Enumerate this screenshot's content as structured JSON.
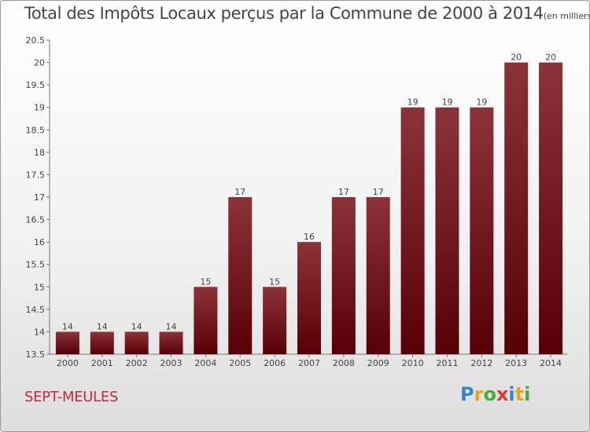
{
  "header": {
    "title": "Total des Impôts Locaux perçus par la Commune de 2000 à 2014",
    "unit": "(en milliers d'€)"
  },
  "footer": {
    "commune": "SEPT-MEULES",
    "logo_letters": [
      {
        "ch": "P",
        "color": "#3b7fd1"
      },
      {
        "ch": "r",
        "color": "#f0a020"
      },
      {
        "ch": "o",
        "color": "#4aa83c"
      },
      {
        "ch": "x",
        "color": "#e23a2a"
      },
      {
        "ch": "i",
        "color": "#3b7fd1"
      },
      {
        "ch": "t",
        "color": "#f0a020"
      },
      {
        "ch": "i",
        "color": "#4aa83c"
      }
    ]
  },
  "chart_data": {
    "type": "bar",
    "categories": [
      "2000",
      "2001",
      "2002",
      "2003",
      "2004",
      "2005",
      "2006",
      "2007",
      "2008",
      "2009",
      "2010",
      "2011",
      "2012",
      "2013",
      "2014"
    ],
    "values": [
      14,
      14,
      14,
      14,
      15,
      17,
      15,
      16,
      17,
      17,
      19,
      19,
      19,
      20,
      20
    ],
    "ylim": [
      13.5,
      20.5
    ],
    "yticks": [
      13.5,
      14,
      14.5,
      15,
      15.5,
      16,
      16.5,
      17,
      17.5,
      18,
      18.5,
      19,
      19.5,
      20,
      20.5
    ],
    "bar_color": "#7a1520",
    "grid": false
  }
}
